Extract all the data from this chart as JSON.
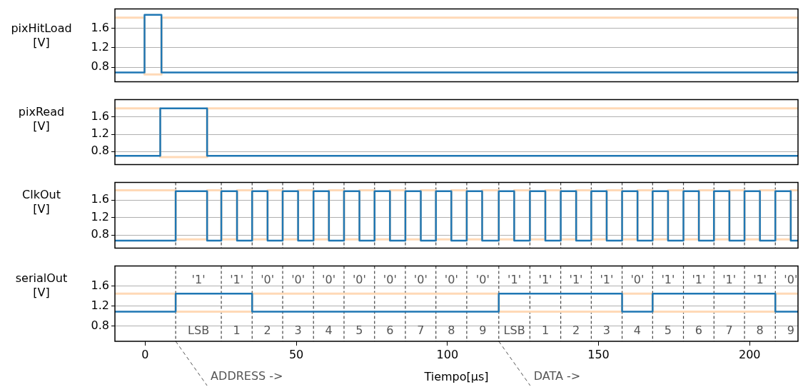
{
  "chart_data": [
    {
      "type": "line",
      "ylabel": "pixHitLoad [V]",
      "xlim": [
        -10,
        216
      ],
      "ylim": [
        0.5,
        2.0
      ],
      "yticks": [
        0.8,
        1.2,
        1.6
      ],
      "grid": "y",
      "tick_labels": "y",
      "x": [
        -10,
        -0.2,
        -0.2,
        5.4,
        5.4,
        216
      ],
      "series": [
        {
          "color": "#ffd9b7",
          "values": [
            1.82,
            1.82,
            0.65,
            0.65,
            1.82,
            1.82
          ]
        },
        {
          "color": "#1f77b4",
          "values": [
            0.69,
            0.69,
            1.88,
            1.88,
            0.69,
            0.69
          ]
        }
      ]
    },
    {
      "type": "line",
      "ylabel": "pixRead [V]",
      "xlim": [
        -10,
        216
      ],
      "ylim": [
        0.5,
        2.0
      ],
      "yticks": [
        0.8,
        1.2,
        1.6
      ],
      "grid": "y",
      "tick_labels": "y",
      "x": [
        -10,
        5.0,
        5.0,
        20.5,
        20.5,
        216
      ],
      "series": [
        {
          "color": "#ffd9b7",
          "values": [
            1.8,
            1.8,
            0.67,
            0.67,
            1.8,
            1.8
          ]
        },
        {
          "color": "#1f77b4",
          "values": [
            0.7,
            0.7,
            1.8,
            1.8,
            0.7,
            0.7
          ]
        }
      ]
    },
    {
      "type": "line",
      "ylabel": "ClkOut [V]",
      "xlim": [
        -10,
        216
      ],
      "ylim": [
        0.5,
        2.0
      ],
      "yticks": [
        0.8,
        1.2,
        1.6
      ],
      "grid": "y",
      "tick_labels": "y",
      "x": [
        -10,
        10.1,
        10.1,
        20.5,
        20.5,
        25.2,
        25.2,
        30.4,
        30.4,
        35.4,
        35.4,
        40.5,
        40.5,
        45.5,
        45.5,
        50.6,
        50.6,
        55.7,
        55.7,
        60.8,
        60.8,
        65.8,
        65.8,
        70.9,
        70.9,
        75.9,
        75.9,
        81.0,
        81.0,
        86.1,
        86.1,
        91.2,
        91.2,
        96.2,
        96.2,
        101.3,
        101.3,
        106.4,
        106.4,
        111.5,
        111.5,
        117.0,
        117.0,
        122.1,
        122.1,
        127.3,
        127.3,
        132.4,
        132.4,
        137.5,
        137.5,
        142.6,
        142.6,
        147.6,
        147.6,
        152.7,
        152.7,
        157.8,
        157.8,
        162.9,
        162.9,
        167.9,
        167.9,
        173.0,
        173.0,
        178.1,
        178.1,
        183.2,
        183.2,
        188.2,
        188.2,
        193.3,
        193.3,
        198.3,
        198.3,
        203.4,
        203.4,
        208.5,
        208.5,
        213.6,
        213.6,
        216
      ],
      "series": [
        {
          "color": "#ffd9b7",
          "values": [
            1.82,
            1.82,
            0.7,
            0.7,
            1.82,
            1.82,
            0.7,
            0.7,
            1.82,
            1.82,
            0.7,
            0.7,
            1.82,
            1.82,
            0.7,
            0.7,
            1.82,
            1.82,
            0.7,
            0.7,
            1.82,
            1.82,
            0.7,
            0.7,
            1.82,
            1.82,
            0.7,
            0.7,
            1.82,
            1.82,
            0.7,
            0.7,
            1.82,
            1.82,
            0.7,
            0.7,
            1.82,
            1.82,
            0.7,
            0.7,
            1.82,
            1.82,
            0.7,
            0.7,
            1.82,
            1.82,
            0.7,
            0.7,
            1.82,
            1.82,
            0.7,
            0.7,
            1.82,
            1.82,
            0.7,
            0.7,
            1.82,
            1.82,
            0.7,
            0.7,
            1.82,
            1.82,
            0.7,
            0.7,
            1.82,
            1.82,
            0.7,
            0.7,
            1.82,
            1.82,
            0.7,
            0.7,
            1.82,
            1.82,
            0.7,
            0.7,
            1.82,
            1.82,
            0.7,
            0.7,
            1.82,
            1.82
          ]
        },
        {
          "color": "#1f77b4",
          "values": [
            0.67,
            0.67,
            1.8,
            1.8,
            0.67,
            0.67,
            1.8,
            1.8,
            0.67,
            0.67,
            1.8,
            1.8,
            0.67,
            0.67,
            1.8,
            1.8,
            0.67,
            0.67,
            1.8,
            1.8,
            0.67,
            0.67,
            1.8,
            1.8,
            0.67,
            0.67,
            1.8,
            1.8,
            0.67,
            0.67,
            1.8,
            1.8,
            0.67,
            0.67,
            1.8,
            1.8,
            0.67,
            0.67,
            1.8,
            1.8,
            0.67,
            0.67,
            1.8,
            1.8,
            0.67,
            0.67,
            1.8,
            1.8,
            0.67,
            0.67,
            1.8,
            1.8,
            0.67,
            0.67,
            1.8,
            1.8,
            0.67,
            0.67,
            1.8,
            1.8,
            0.67,
            0.67,
            1.8,
            1.8,
            0.67,
            0.67,
            1.8,
            1.8,
            0.67,
            0.67,
            1.8,
            1.8,
            0.67,
            0.67,
            1.8,
            1.8,
            0.67,
            0.67,
            1.8,
            1.8,
            0.67,
            0.67
          ]
        }
      ],
      "ref_lines": [
        {
          "axis": "x",
          "value": 10.1,
          "line_style": "dashed"
        },
        {
          "axis": "x",
          "value": 25.2,
          "line_style": "dashed"
        },
        {
          "axis": "x",
          "value": 35.4,
          "line_style": "dashed"
        },
        {
          "axis": "x",
          "value": 45.5,
          "line_style": "dashed"
        },
        {
          "axis": "x",
          "value": 55.7,
          "line_style": "dashed"
        },
        {
          "axis": "x",
          "value": 65.8,
          "line_style": "dashed"
        },
        {
          "axis": "x",
          "value": 75.9,
          "line_style": "dashed"
        },
        {
          "axis": "x",
          "value": 86.1,
          "line_style": "dashed"
        },
        {
          "axis": "x",
          "value": 96.2,
          "line_style": "dashed"
        },
        {
          "axis": "x",
          "value": 106.4,
          "line_style": "dashed"
        },
        {
          "axis": "x",
          "value": 117.0,
          "line_style": "dashed"
        },
        {
          "axis": "x",
          "value": 127.3,
          "line_style": "dashed"
        },
        {
          "axis": "x",
          "value": 137.5,
          "line_style": "dashed"
        },
        {
          "axis": "x",
          "value": 147.6,
          "line_style": "dashed"
        },
        {
          "axis": "x",
          "value": 157.8,
          "line_style": "dashed"
        },
        {
          "axis": "x",
          "value": 167.9,
          "line_style": "dashed"
        },
        {
          "axis": "x",
          "value": 178.1,
          "line_style": "dashed"
        },
        {
          "axis": "x",
          "value": 188.2,
          "line_style": "dashed"
        },
        {
          "axis": "x",
          "value": 198.3,
          "line_style": "dashed"
        },
        {
          "axis": "x",
          "value": 208.5,
          "line_style": "dashed"
        }
      ]
    },
    {
      "type": "line",
      "ylabel": "serialOut [V]",
      "xlabel": "Tiempo[μs]",
      "xlim": [
        -10,
        216
      ],
      "ylim": [
        0.5,
        2.0
      ],
      "xticks": [
        0,
        50,
        100,
        150,
        200
      ],
      "yticks": [
        0.8,
        1.2,
        1.6
      ],
      "grid": "y",
      "x": [
        -10,
        10.1,
        10.1,
        35.4,
        35.4,
        117.0,
        117.0,
        157.8,
        157.8,
        167.9,
        167.9,
        208.5,
        208.5,
        216
      ],
      "series": [
        {
          "color": "#ffd9b7",
          "values": [
            1.45,
            1.45,
            1.09,
            1.09,
            1.45,
            1.45,
            1.09,
            1.09,
            1.45,
            1.45,
            1.09,
            1.09,
            1.45,
            1.45
          ]
        },
        {
          "color": "#1f77b4",
          "values": [
            1.09,
            1.09,
            1.45,
            1.45,
            1.09,
            1.09,
            1.45,
            1.45,
            1.09,
            1.09,
            1.45,
            1.45,
            1.09,
            1.09
          ]
        }
      ],
      "ref_lines": [
        {
          "axis": "x",
          "value": 10.1,
          "line_style": "dashed"
        },
        {
          "axis": "x",
          "value": 25.2,
          "line_style": "dashed"
        },
        {
          "axis": "x",
          "value": 35.4,
          "line_style": "dashed"
        },
        {
          "axis": "x",
          "value": 45.5,
          "line_style": "dashed"
        },
        {
          "axis": "x",
          "value": 55.7,
          "line_style": "dashed"
        },
        {
          "axis": "x",
          "value": 65.8,
          "line_style": "dashed"
        },
        {
          "axis": "x",
          "value": 75.9,
          "line_style": "dashed"
        },
        {
          "axis": "x",
          "value": 86.1,
          "line_style": "dashed"
        },
        {
          "axis": "x",
          "value": 96.2,
          "line_style": "dashed"
        },
        {
          "axis": "x",
          "value": 106.4,
          "line_style": "dashed"
        },
        {
          "axis": "x",
          "value": 117.0,
          "line_style": "dashed"
        },
        {
          "axis": "x",
          "value": 127.3,
          "line_style": "dashed"
        },
        {
          "axis": "x",
          "value": 137.5,
          "line_style": "dashed"
        },
        {
          "axis": "x",
          "value": 147.6,
          "line_style": "dashed"
        },
        {
          "axis": "x",
          "value": 157.8,
          "line_style": "dashed"
        },
        {
          "axis": "x",
          "value": 167.9,
          "line_style": "dashed"
        },
        {
          "axis": "x",
          "value": 178.1,
          "line_style": "dashed"
        },
        {
          "axis": "x",
          "value": 188.2,
          "line_style": "dashed"
        },
        {
          "axis": "x",
          "value": 198.3,
          "line_style": "dashed"
        },
        {
          "axis": "x",
          "value": 208.5,
          "line_style": "dashed"
        }
      ],
      "annotations": [
        "'1'",
        "'1'",
        "'0'",
        "'0'",
        "'0'",
        "'0'",
        "'0'",
        "'0'",
        "'0'",
        "'0'",
        "'1'",
        "'1'",
        "'1'",
        "'1'",
        "'0'",
        "'1'",
        "'1'",
        "'1'",
        "'1'",
        "'0'",
        "LSB",
        "1",
        "2",
        "3",
        "4",
        "5",
        "6",
        "7",
        "8",
        "9",
        "LSB",
        "1",
        "2",
        "3",
        "4",
        "5",
        "6",
        "7",
        "8",
        "9",
        "ADDRESS ->",
        "DATA ->"
      ]
    }
  ]
}
